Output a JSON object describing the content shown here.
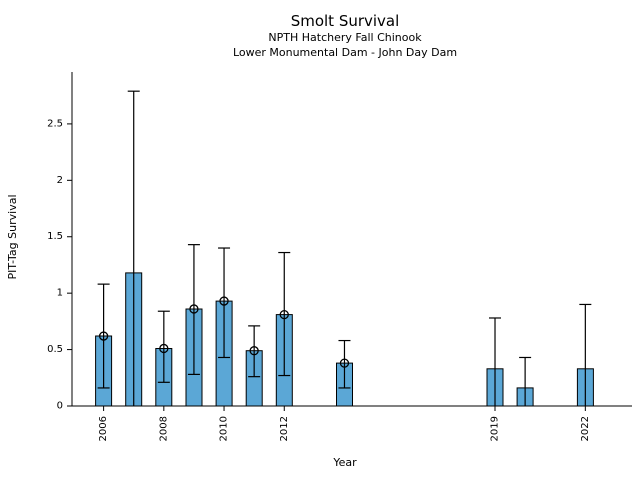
{
  "figure": {
    "title": "Smolt Survival",
    "subtitle1": "NPTH Hatchery Fall Chinook",
    "subtitle2": "Lower Monumental Dam - John Day Dam"
  },
  "chart_data": {
    "type": "bar",
    "title": "Smolt Survival",
    "subtitle": [
      "NPTH Hatchery Fall Chinook",
      "Lower Monumental Dam - John Day Dam"
    ],
    "xlabel": "Year",
    "ylabel": "PIT-Tag Survival",
    "xlim": [
      2004.95,
      2023.55
    ],
    "ylim": [
      0,
      2.96
    ],
    "x_ticks": [
      2006,
      2008,
      2010,
      2012,
      2019,
      2022
    ],
    "x_tick_labels": [
      "2006",
      "2008",
      "2010",
      "2012",
      "2019",
      "2022"
    ],
    "y_ticks": [
      0,
      0.5,
      1,
      1.5,
      2,
      2.5
    ],
    "y_tick_labels": [
      "0",
      "0.5",
      "1",
      "1.5",
      "2",
      "2.5"
    ],
    "grid": false,
    "legend": null,
    "bar_color": "#5BA7D6",
    "bar_edge_color": "#000000",
    "error_color": "#000000",
    "bar_width_years": 0.53,
    "points": [
      {
        "year": 2006,
        "value": 0.62,
        "ci_low": 0.16,
        "ci_high": 1.08,
        "cap_low": true,
        "marker": true
      },
      {
        "year": 2007,
        "value": 1.18,
        "ci_low": 0.0,
        "ci_high": 2.79,
        "cap_low": false,
        "marker": false
      },
      {
        "year": 2008,
        "value": 0.51,
        "ci_low": 0.21,
        "ci_high": 0.84,
        "cap_low": true,
        "marker": true
      },
      {
        "year": 2009,
        "value": 0.86,
        "ci_low": 0.28,
        "ci_high": 1.43,
        "cap_low": true,
        "marker": true
      },
      {
        "year": 2010,
        "value": 0.93,
        "ci_low": 0.43,
        "ci_high": 1.4,
        "cap_low": true,
        "marker": true
      },
      {
        "year": 2011,
        "value": 0.49,
        "ci_low": 0.26,
        "ci_high": 0.71,
        "cap_low": true,
        "marker": true
      },
      {
        "year": 2012,
        "value": 0.81,
        "ci_low": 0.27,
        "ci_high": 1.36,
        "cap_low": true,
        "marker": true
      },
      {
        "year": 2014,
        "value": 0.38,
        "ci_low": 0.16,
        "ci_high": 0.58,
        "cap_low": true,
        "marker": true
      },
      {
        "year": 2019,
        "value": 0.33,
        "ci_low": 0.0,
        "ci_high": 0.78,
        "cap_low": false,
        "marker": false
      },
      {
        "year": 2020,
        "value": 0.16,
        "ci_low": 0.0,
        "ci_high": 0.43,
        "cap_low": false,
        "marker": false
      },
      {
        "year": 2022,
        "value": 0.33,
        "ci_low": 0.0,
        "ci_high": 0.9,
        "cap_low": false,
        "marker": false
      }
    ]
  }
}
